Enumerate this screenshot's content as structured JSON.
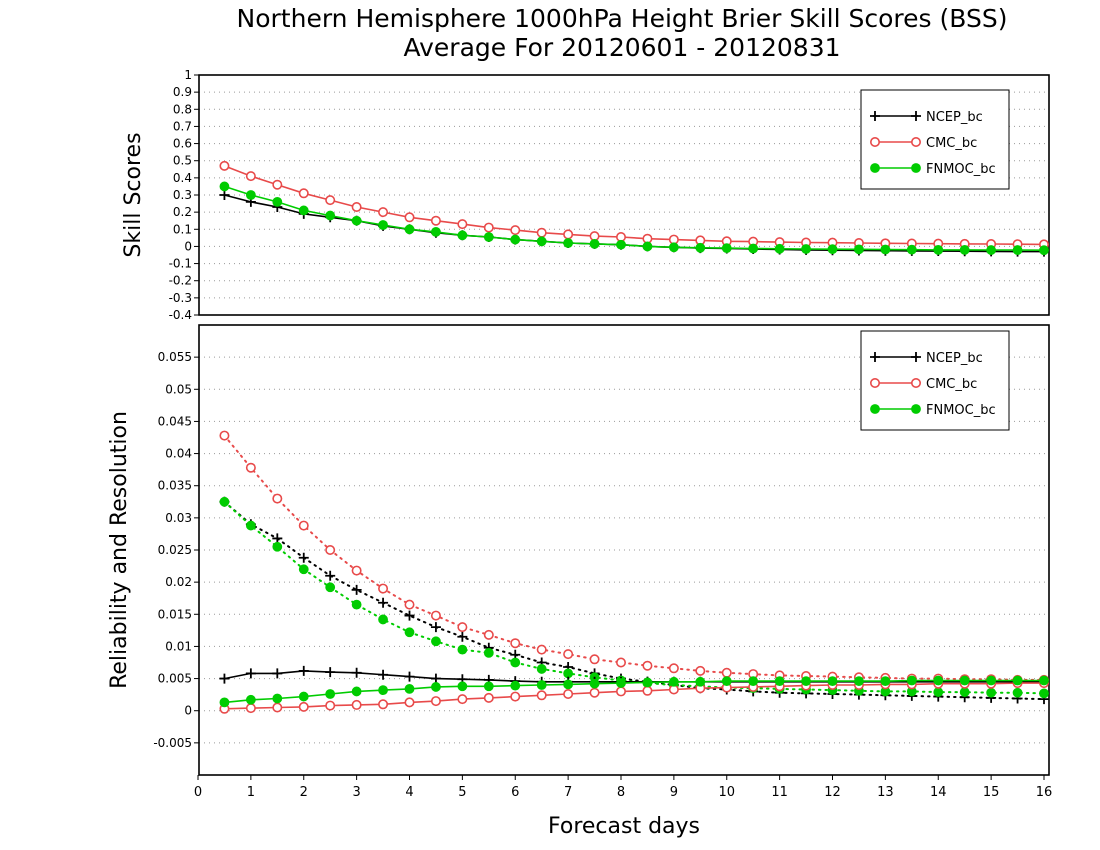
{
  "chart_data": {
    "type": "line",
    "title": "Northern Hemisphere 1000hPa Height Brier Skill Scores (BSS)",
    "subtitle": "Average For 20120601 - 20120831",
    "xlabel": "Forecast days",
    "xlim": [
      0,
      16
    ],
    "xticks": [
      "0",
      "1",
      "2",
      "3",
      "4",
      "5",
      "6",
      "7",
      "8",
      "9",
      "10",
      "11",
      "12",
      "13",
      "14",
      "15",
      "16"
    ],
    "x": [
      0.5,
      1,
      1.5,
      2,
      2.5,
      3,
      3.5,
      4,
      4.5,
      5,
      5.5,
      6,
      6.5,
      7,
      7.5,
      8,
      8.5,
      9,
      9.5,
      10,
      10.5,
      11,
      11.5,
      12,
      12.5,
      13,
      13.5,
      14,
      14.5,
      15,
      15.5,
      16
    ],
    "colors": {
      "NCEP_bc": "#000000",
      "CMC_bc": "#e84a4a",
      "FNMOC_bc": "#00cc00"
    },
    "panels": [
      {
        "ylabel": "Skill Scores",
        "ylim": [
          -0.4,
          1
        ],
        "yticks": [
          "1",
          "0.9",
          "0.8",
          "0.7",
          "0.6",
          "0.5",
          "0.4",
          "0.3",
          "0.2",
          "0.1",
          "0",
          "-0.1",
          "-0.2",
          "-0.3",
          "-0.4"
        ],
        "grid": true,
        "legend_position": "top-right",
        "legend": [
          "NCEP_bc",
          "CMC_bc",
          "FNMOC_bc"
        ],
        "series": [
          {
            "name": "NCEP_bc",
            "marker": "plus",
            "style": "solid",
            "values": [
              0.3,
              0.26,
              0.23,
              0.19,
              0.17,
              0.15,
              0.12,
              0.1,
              0.08,
              0.065,
              0.055,
              0.04,
              0.03,
              0.02,
              0.015,
              0.01,
              0.0,
              -0.005,
              -0.01,
              -0.012,
              -0.015,
              -0.018,
              -0.02,
              -0.022,
              -0.024,
              -0.025,
              -0.026,
              -0.027,
              -0.028,
              -0.029,
              -0.03,
              -0.03
            ]
          },
          {
            "name": "CMC_bc",
            "marker": "open-circle",
            "style": "solid",
            "values": [
              0.47,
              0.41,
              0.36,
              0.31,
              0.27,
              0.23,
              0.2,
              0.17,
              0.15,
              0.13,
              0.11,
              0.095,
              0.08,
              0.07,
              0.06,
              0.055,
              0.045,
              0.04,
              0.035,
              0.03,
              0.028,
              0.025,
              0.023,
              0.022,
              0.02,
              0.018,
              0.017,
              0.016,
              0.015,
              0.014,
              0.013,
              0.012
            ]
          },
          {
            "name": "FNMOC_bc",
            "marker": "filled-circle",
            "style": "solid",
            "values": [
              0.35,
              0.3,
              0.26,
              0.21,
              0.18,
              0.15,
              0.125,
              0.1,
              0.085,
              0.065,
              0.055,
              0.04,
              0.03,
              0.02,
              0.015,
              0.01,
              0.0,
              -0.005,
              -0.008,
              -0.01,
              -0.012,
              -0.014,
              -0.015,
              -0.016,
              -0.017,
              -0.018,
              -0.019,
              -0.02,
              -0.02,
              -0.021,
              -0.021,
              -0.022
            ]
          }
        ]
      },
      {
        "ylabel": "Reliability and Resolution",
        "ylim": [
          -0.01,
          0.06
        ],
        "yticks": [
          "0.055",
          "0.05",
          "0.045",
          "0.04",
          "0.035",
          "0.03",
          "0.025",
          "0.02",
          "0.015",
          "0.01",
          "0.005",
          "0",
          "-0.005"
        ],
        "grid": true,
        "legend_position": "top-right",
        "legend": [
          "NCEP_bc",
          "CMC_bc",
          "FNMOC_bc"
        ],
        "series": [
          {
            "name": "NCEP_bc",
            "marker": "plus",
            "style": "dotted",
            "values": [
              0.0325,
              0.029,
              0.0268,
              0.0238,
              0.021,
              0.0188,
              0.0168,
              0.0148,
              0.013,
              0.0115,
              0.0098,
              0.0087,
              0.0075,
              0.0068,
              0.0058,
              0.005,
              0.0045,
              0.004,
              0.0035,
              0.0033,
              0.003,
              0.0028,
              0.0027,
              0.0026,
              0.0025,
              0.0024,
              0.0023,
              0.0022,
              0.0021,
              0.002,
              0.0019,
              0.0018
            ]
          },
          {
            "name": "CMC_bc",
            "marker": "open-circle",
            "style": "dotted",
            "values": [
              0.0428,
              0.0378,
              0.033,
              0.0288,
              0.025,
              0.0218,
              0.019,
              0.0165,
              0.0148,
              0.013,
              0.0118,
              0.0105,
              0.0095,
              0.0088,
              0.008,
              0.0075,
              0.007,
              0.0066,
              0.0062,
              0.0059,
              0.0057,
              0.0055,
              0.0054,
              0.0053,
              0.0052,
              0.0051,
              0.005,
              0.005,
              0.0049,
              0.0049,
              0.0048,
              0.0048
            ]
          },
          {
            "name": "FNMOC_bc",
            "marker": "filled-circle",
            "style": "dotted",
            "values": [
              0.0325,
              0.0288,
              0.0255,
              0.022,
              0.0192,
              0.0165,
              0.0142,
              0.0122,
              0.0108,
              0.0095,
              0.009,
              0.0075,
              0.0065,
              0.0058,
              0.0052,
              0.0047,
              0.0043,
              0.004,
              0.0038,
              0.0036,
              0.0035,
              0.0034,
              0.0033,
              0.0032,
              0.0031,
              0.003,
              0.003,
              0.0029,
              0.0029,
              0.0028,
              0.0028,
              0.0027
            ]
          },
          {
            "name": "NCEP_bc",
            "marker": "plus",
            "style": "solid",
            "values": [
              0.005,
              0.0058,
              0.0058,
              0.0062,
              0.006,
              0.0059,
              0.0056,
              0.0053,
              0.005,
              0.0049,
              0.0048,
              0.0046,
              0.0045,
              0.0045,
              0.0045,
              0.0045,
              0.0045,
              0.0045,
              0.0045,
              0.0045,
              0.0045,
              0.0045,
              0.0045,
              0.0045,
              0.0045,
              0.0045,
              0.0045,
              0.0045,
              0.0045,
              0.0045,
              0.0045,
              0.0045
            ]
          },
          {
            "name": "CMC_bc",
            "marker": "open-circle",
            "style": "solid",
            "values": [
              0.0003,
              0.0004,
              0.0005,
              0.0006,
              0.0008,
              0.0009,
              0.001,
              0.0013,
              0.0015,
              0.0018,
              0.002,
              0.0022,
              0.0024,
              0.0026,
              0.0028,
              0.003,
              0.0031,
              0.0033,
              0.0035,
              0.0036,
              0.0037,
              0.0038,
              0.0039,
              0.004,
              0.004,
              0.0041,
              0.0041,
              0.0042,
              0.0042,
              0.0042,
              0.0043,
              0.0043
            ]
          },
          {
            "name": "FNMOC_bc",
            "marker": "filled-circle",
            "style": "solid",
            "values": [
              0.0013,
              0.0017,
              0.0019,
              0.0022,
              0.0026,
              0.003,
              0.0032,
              0.0034,
              0.0037,
              0.0038,
              0.0038,
              0.0039,
              0.004,
              0.0041,
              0.0042,
              0.0043,
              0.0044,
              0.0045,
              0.0045,
              0.0046,
              0.0046,
              0.0046,
              0.0046,
              0.0046,
              0.0046,
              0.0046,
              0.0047,
              0.0047,
              0.0047,
              0.0047,
              0.0047,
              0.0047
            ]
          }
        ]
      }
    ]
  }
}
